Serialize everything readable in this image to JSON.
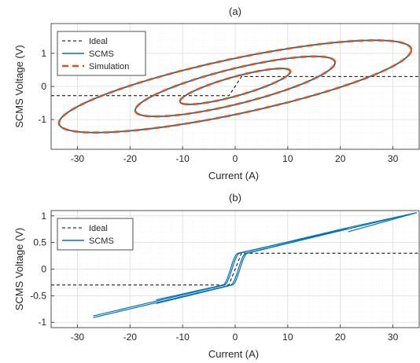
{
  "colors": {
    "ideal": "#000000",
    "scms": "#0072BD",
    "simulation": "#D95319",
    "grid": "#dcdcdc",
    "axis": "#262626"
  },
  "chart_data": [
    {
      "type": "line",
      "title": "(a)",
      "xlabel": "Current (A)",
      "ylabel": "SCMS Voltage (V)",
      "xlim": [
        -35,
        35
      ],
      "ylim": [
        -1.9,
        1.9
      ],
      "xticks": [
        -30,
        -20,
        -10,
        0,
        10,
        20,
        30
      ],
      "yticks": [
        -1,
        0,
        1
      ],
      "grid": true,
      "legend_position": "top-left",
      "series": [
        {
          "name": "Ideal",
          "style": "dashed-black",
          "points": [
            [
              -35,
              -0.28
            ],
            [
              -1.2,
              -0.28
            ],
            [
              0,
              0
            ],
            [
              1.2,
              0.3
            ],
            [
              35,
              0.3
            ]
          ]
        },
        {
          "name": "SCMS",
          "style": "solid-blue",
          "loops": [
            {
              "amp": 33.5,
              "offset": 0.85,
              "slope": 0.033
            },
            {
              "amp": 19,
              "offset": 0.55,
              "slope": 0.038
            },
            {
              "amp": 10.5,
              "offset": 0.3,
              "slope": 0.043
            }
          ]
        },
        {
          "name": "Simulation",
          "style": "dashed-orange",
          "loops": [
            {
              "amp": 33.5,
              "offset": 0.85,
              "slope": 0.033
            },
            {
              "amp": 19,
              "offset": 0.55,
              "slope": 0.038
            },
            {
              "amp": 10.5,
              "offset": 0.3,
              "slope": 0.043
            }
          ]
        }
      ]
    },
    {
      "type": "line",
      "title": "(b)",
      "xlabel": "Current (A)",
      "ylabel": "SCMS Voltage (V)",
      "xlim": [
        -35,
        35
      ],
      "ylim": [
        -1.1,
        1.1
      ],
      "xticks": [
        -30,
        -20,
        -10,
        0,
        10,
        20,
        30
      ],
      "yticks": [
        -1,
        -0.5,
        0,
        0.5,
        1
      ],
      "grid": true,
      "legend_position": "top-left",
      "series": [
        {
          "name": "Ideal",
          "style": "dashed-black",
          "points": [
            [
              -35,
              -0.3
            ],
            [
              -1.2,
              -0.3
            ],
            [
              0,
              0
            ],
            [
              1.2,
              0.3
            ],
            [
              35,
              0.3
            ]
          ]
        },
        {
          "name": "SCMS",
          "style": "solid-blue",
          "branches": [
            {
              "x_start": -27,
              "x_end": 34.5,
              "shift": 0.6,
              "y_at_end": 1.06
            },
            {
              "x_start": -27,
              "x_end": 21.5,
              "shift": -0.6,
              "y_at_end": 0.78
            },
            {
              "x_start": -15,
              "x_end": 21.5,
              "shift": 0.9,
              "y_at_end": 0.76
            },
            {
              "x_start": -15,
              "x_end": 21.5,
              "shift": -0.9,
              "y_at_end": 0.76
            }
          ]
        }
      ]
    }
  ]
}
